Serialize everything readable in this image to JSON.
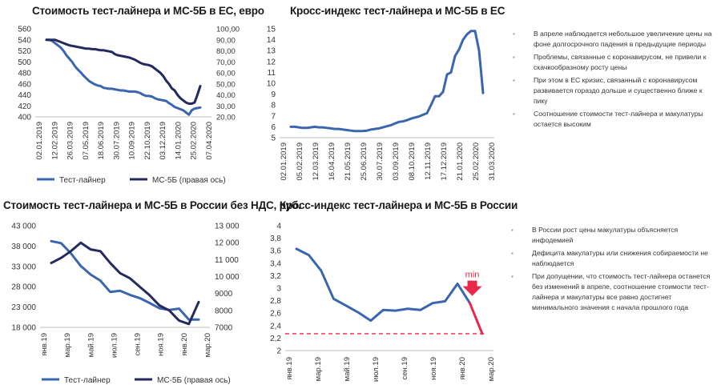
{
  "colors": {
    "blue": "#3a66b0",
    "navy": "#252a5e",
    "red": "#e8294c",
    "grid": "#d9d9d9"
  },
  "chart_data": [
    {
      "id": "eu_price",
      "type": "line",
      "title": "Стоимость тест-лайнера и МС-5Б в ЕС, евро",
      "ylim": [
        400,
        560
      ],
      "y2lim": [
        20,
        100
      ],
      "yticks": [
        "400",
        "420",
        "440",
        "460",
        "480",
        "500",
        "520",
        "540",
        "560"
      ],
      "y2ticks": [
        "20,00",
        "30,00",
        "40,00",
        "50,00",
        "60,00",
        "70,00",
        "80,00",
        "90,00",
        "100,00"
      ],
      "xticks": [
        "02.01.2019",
        "12.02.2019",
        "26.03.2019",
        "07.05.2019",
        "18.06.2019",
        "30.07.2019",
        "10.09.2019",
        "22.10.2019",
        "03.12.2019",
        "14.01.2020",
        "25.02.2020",
        "07.04.2020"
      ],
      "legend": [
        "Тест-лайнер",
        "МС-5Б (правая ось)"
      ],
      "series": [
        {
          "name": "Тест-лайнер",
          "axis": "left",
          "color": "blue",
          "values": [
            540,
            540,
            538,
            534,
            530,
            526,
            520,
            512,
            506,
            500,
            492,
            486,
            481,
            475,
            470,
            465,
            462,
            459,
            457,
            456,
            453,
            452,
            451,
            451,
            450,
            449,
            448,
            448,
            447,
            446,
            446,
            446,
            445,
            443,
            440,
            438,
            438,
            437,
            434,
            432,
            431,
            430,
            429,
            425,
            422,
            418,
            416,
            414,
            412,
            408,
            404,
            412,
            415,
            416,
            417
          ]
        },
        {
          "name": "МС-5Б (правая ось)",
          "axis": "right",
          "color": "navy",
          "values": [
            90,
            90,
            90,
            90,
            89,
            88,
            87,
            86,
            85,
            84.5,
            84,
            83.5,
            83,
            82.5,
            82,
            82,
            81.5,
            81.5,
            81,
            80.5,
            80.5,
            80,
            79.5,
            79,
            77,
            76,
            75.5,
            75,
            74.5,
            74,
            73,
            72,
            70.5,
            69,
            68,
            67.5,
            67,
            66,
            64,
            62,
            60,
            57,
            53,
            50,
            46,
            44,
            40,
            37,
            35,
            33,
            32,
            32,
            33,
            40,
            48
          ]
        }
      ]
    },
    {
      "id": "eu_cross",
      "type": "line",
      "title": "Кросс-индекс тест-лайнера и МС-5Б в ЕС",
      "ylim": [
        5,
        15
      ],
      "yticks": [
        "5",
        "6",
        "7",
        "8",
        "9",
        "10",
        "11",
        "12",
        "13",
        "14",
        "15"
      ],
      "xticks": [
        "02.01.2019",
        "05.02.2019",
        "12.03.2019",
        "16.04.2019",
        "21.05.2019",
        "25.06.2019",
        "30.07.2019",
        "03.09.2019",
        "08.10.2019",
        "12.11.2019",
        "17.12.2019",
        "21.01.2020",
        "25.02.2020",
        "31.03.2020"
      ],
      "series": [
        {
          "name": "",
          "color": "blue",
          "values": [
            6,
            6,
            5.95,
            5.9,
            5.9,
            5.95,
            6,
            5.95,
            5.95,
            5.9,
            5.85,
            5.8,
            5.8,
            5.75,
            5.7,
            5.65,
            5.6,
            5.6,
            5.62,
            5.65,
            5.75,
            5.8,
            5.85,
            5.95,
            6.05,
            6.15,
            6.3,
            6.45,
            6.5,
            6.6,
            6.75,
            6.85,
            6.95,
            7.1,
            7.25,
            8,
            8.8,
            8.8,
            9.2,
            10.8,
            11,
            12.5,
            13.1,
            14,
            14.5,
            14.8,
            14.8,
            13,
            9.1
          ]
        }
      ]
    },
    {
      "id": "ru_price",
      "type": "line",
      "title": "Стоимость тест-лайнера и МС-5Б в России без НДС, руб.",
      "ylim": [
        18000,
        43000
      ],
      "y2lim": [
        7000,
        13000
      ],
      "yticks": [
        "18 000",
        "23 000",
        "28 000",
        "33 000",
        "38 000",
        "43 000"
      ],
      "y2ticks": [
        "7000",
        "8000",
        "9000",
        "10 000",
        "11 000",
        "12 000",
        "13 000"
      ],
      "xticks": [
        "янв.19",
        "мар.19",
        "май.19",
        "июл.19",
        "сен.19",
        "ноя.19",
        "янв.20",
        "мар.20"
      ],
      "legend": [
        "Тест-лайнер",
        "МС-5Б (правая ось)"
      ],
      "series": [
        {
          "name": "Тест-лайнер",
          "axis": "left",
          "color": "blue",
          "values": [
            39200,
            38700,
            36200,
            33100,
            31000,
            29500,
            26700,
            27000,
            26000,
            25200,
            24000,
            22700,
            22300,
            22600,
            19900,
            19900
          ]
        },
        {
          "name": "МС-5Б (правая ось)",
          "axis": "right",
          "color": "navy",
          "values": [
            10800,
            11100,
            11500,
            12000,
            11600,
            11500,
            10800,
            10200,
            9900,
            9400,
            8900,
            8300,
            8000,
            7400,
            7200,
            8500
          ]
        }
      ]
    },
    {
      "id": "ru_cross",
      "type": "line",
      "title": "Кросс-индекс тест-лайнера и МС-5Б в России",
      "ylim": [
        2,
        4
      ],
      "yticks": [
        "2",
        "2,2",
        "2,4",
        "2,6",
        "2,8",
        "3",
        "3,2",
        "3,4",
        "3,6",
        "3,8",
        "4"
      ],
      "xticks": [
        "янв.19",
        "мар.19",
        "май.19",
        "июл.19",
        "сен.19",
        "ноя.19",
        "янв.20",
        "мар.20"
      ],
      "reference_line": 2.27,
      "annotation": "min",
      "series": [
        {
          "name": "",
          "color": "blue",
          "values": [
            3.63,
            3.53,
            3.28,
            2.83,
            2.72,
            2.61,
            2.48,
            2.65,
            2.64,
            2.67,
            2.65,
            2.76,
            2.79,
            3.07,
            2.76
          ]
        },
        {
          "name": "",
          "color": "red",
          "start_index": 14,
          "values": [
            2.76,
            2.27
          ]
        }
      ]
    }
  ],
  "notes_eu": [
    "В апреле наблюдается небольшое увеличение цены на фоне долгосрочного падения в предыдущие периоды",
    "Проблемы, связанные с коронавирусом, не привели к скачкообразному росту цены",
    "При этом в ЕС кризис, связанный с коронавирусом развивается гораздо дольше и существенно ближе к пику",
    "Соотношение стоимости тест-лайнера и макулатуры остается высоким"
  ],
  "notes_ru": [
    "В России рост цены макулатуры объясняется инфодемией",
    "Дефицита макулатуры или снижения собираемости не наблюдается",
    "При допущении, что стоимость тест-лайнера останется без изменений в апреле, соотношение стоимости тест-лайнера и макулатуры все равно достигнет минимального значения с начала прошлого года"
  ]
}
